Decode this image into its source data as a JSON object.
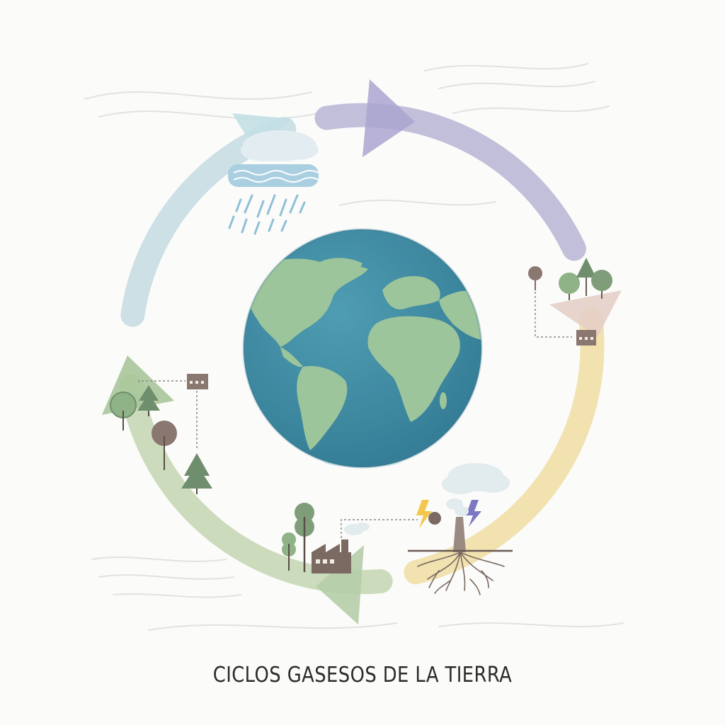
{
  "caption": "CICLOS GASESOS DE LA TIERRA",
  "colors": {
    "background": "#fbfbfa",
    "cycle_top": "#b7b4d4",
    "cycle_left": "#c7dde3",
    "cycle_right": "#f0dfa7",
    "cycle_bottom": "#c6d7b4",
    "ocean": "#3f8ca4",
    "land": "#9dc59b",
    "tree_green": "#6f8e6d",
    "tree_brown": "#8a7770",
    "factory": "#7b6a61",
    "lightning_yellow": "#f2c74c",
    "lightning_purple": "#7d78c4"
  },
  "icons": [
    "globe-icon",
    "cloud-rain-icon",
    "trees-icon",
    "factory-icon",
    "building-icon",
    "lightning-icon",
    "roots-icon",
    "pine-tree-icon"
  ]
}
